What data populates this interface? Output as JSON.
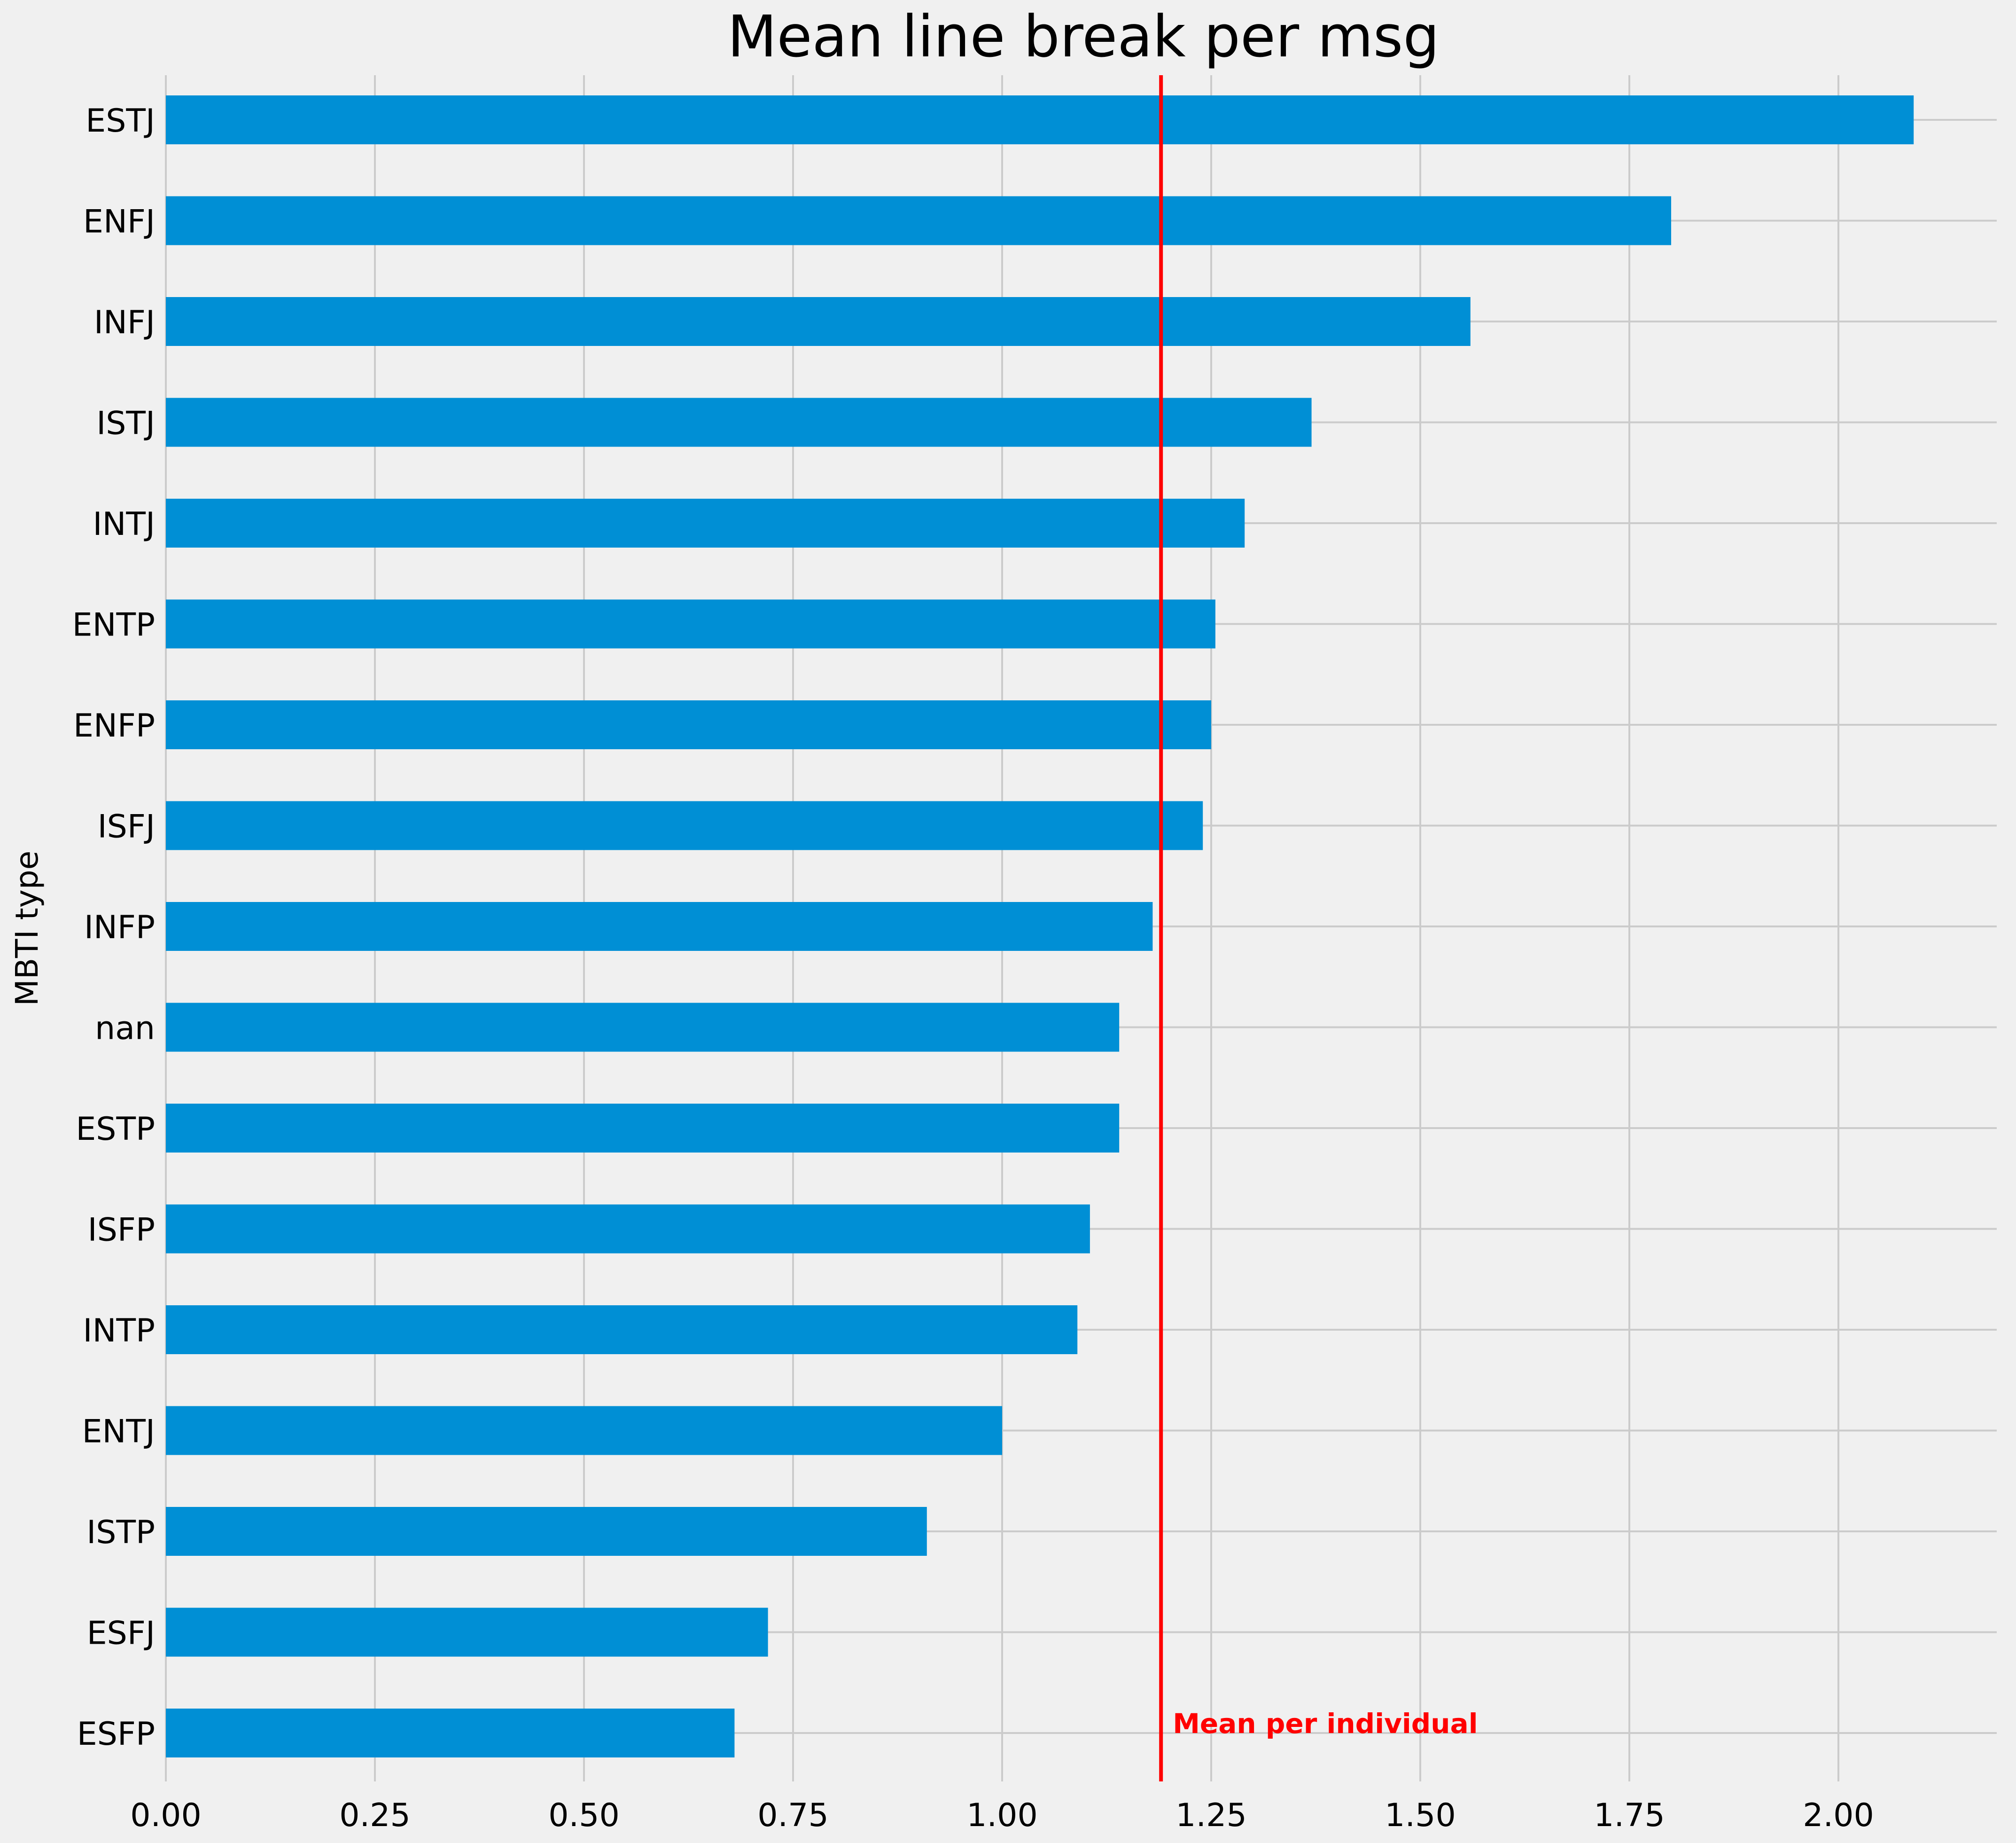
{
  "chart_data": {
    "type": "bar",
    "orientation": "horizontal",
    "title": "Mean line break per msg",
    "ylabel": "MBTI type",
    "xlabel": "",
    "xlim": [
      0,
      2.2
    ],
    "xticks": [
      "0.00",
      "0.25",
      "0.50",
      "0.75",
      "1.00",
      "1.25",
      "1.50",
      "1.75",
      "2.00"
    ],
    "xtick_values": [
      0,
      0.25,
      0.5,
      0.75,
      1.0,
      1.25,
      1.5,
      1.75,
      2.0
    ],
    "categories": [
      "ESTJ",
      "ENFJ",
      "INFJ",
      "ISTJ",
      "INTJ",
      "ENTP",
      "ENFP",
      "ISFJ",
      "INFP",
      "nan",
      "ESTP",
      "ISFP",
      "INTP",
      "ENTJ",
      "ISTP",
      "ESFJ",
      "ESFP"
    ],
    "values": [
      2.09,
      1.8,
      1.56,
      1.37,
      1.29,
      1.255,
      1.25,
      1.24,
      1.18,
      1.14,
      1.14,
      1.105,
      1.09,
      1.0,
      0.91,
      0.72,
      0.68
    ],
    "bar_color": "#008fd5",
    "grid": true,
    "reference_line": {
      "value": 1.19,
      "label": "Mean per individual",
      "color": "#ff0000"
    }
  }
}
